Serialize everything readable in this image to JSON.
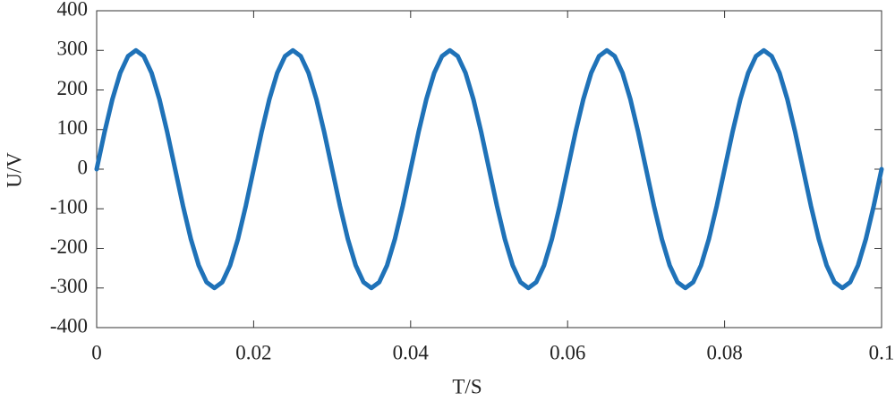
{
  "chart_data": {
    "type": "line",
    "xlabel": "T/S",
    "ylabel": "U/V",
    "x": [
      0,
      0.001,
      0.002,
      0.003,
      0.004,
      0.005,
      0.006,
      0.007,
      0.008,
      0.009,
      0.01,
      0.011,
      0.012,
      0.013,
      0.014,
      0.015,
      0.016,
      0.017,
      0.018,
      0.019,
      0.02,
      0.021,
      0.022,
      0.023,
      0.024,
      0.025,
      0.026,
      0.027,
      0.028,
      0.029,
      0.03,
      0.031,
      0.032,
      0.033,
      0.034,
      0.035,
      0.036,
      0.037,
      0.038,
      0.039,
      0.04,
      0.041,
      0.042,
      0.043,
      0.044,
      0.045,
      0.046,
      0.047,
      0.048,
      0.049,
      0.05,
      0.051,
      0.052,
      0.053,
      0.054,
      0.055,
      0.056,
      0.057,
      0.058,
      0.059,
      0.06,
      0.061,
      0.062,
      0.063,
      0.064,
      0.065,
      0.066,
      0.067,
      0.068,
      0.069,
      0.07,
      0.071,
      0.072,
      0.073,
      0.074,
      0.075,
      0.076,
      0.077,
      0.078,
      0.079,
      0.08,
      0.081,
      0.082,
      0.083,
      0.084,
      0.085,
      0.086,
      0.087,
      0.088,
      0.089,
      0.09,
      0.091,
      0.092,
      0.093,
      0.094,
      0.095,
      0.096,
      0.097,
      0.098,
      0.099,
      0.1
    ],
    "series": [
      {
        "color": "#1f72b8",
        "values": [
          0,
          92.7,
          176.3,
          242.7,
          285.3,
          300,
          285.3,
          242.7,
          176.3,
          92.7,
          0,
          -92.7,
          -176.3,
          -242.7,
          -285.3,
          -300,
          -285.3,
          -242.7,
          -176.3,
          -92.7,
          0,
          92.7,
          176.3,
          242.7,
          285.3,
          300,
          285.3,
          242.7,
          176.3,
          92.7,
          0,
          -92.7,
          -176.3,
          -242.7,
          -285.3,
          -300,
          -285.3,
          -242.7,
          -176.3,
          -92.7,
          0,
          92.7,
          176.3,
          242.7,
          285.3,
          300,
          285.3,
          242.7,
          176.3,
          92.7,
          0,
          -92.7,
          -176.3,
          -242.7,
          -285.3,
          -300,
          -285.3,
          -242.7,
          -176.3,
          -92.7,
          0,
          92.7,
          176.3,
          242.7,
          285.3,
          300,
          285.3,
          242.7,
          176.3,
          92.7,
          0,
          -92.7,
          -176.3,
          -242.7,
          -285.3,
          -300,
          -285.3,
          -242.7,
          -176.3,
          -92.7,
          0,
          92.7,
          176.3,
          242.7,
          285.3,
          300,
          285.3,
          242.7,
          176.3,
          92.7,
          0,
          -92.7,
          -176.3,
          -242.7,
          -285.3,
          -300,
          -285.3,
          -242.7,
          -176.3,
          -92.7,
          0
        ]
      }
    ],
    "xlim": [
      0,
      0.1
    ],
    "xticks": [
      0,
      0.02,
      0.04,
      0.06,
      0.08,
      0.1
    ],
    "ylim": [
      -400,
      400
    ],
    "yticks": [
      -400,
      -300,
      -200,
      -100,
      0,
      100,
      200,
      300,
      400
    ],
    "grid": false
  }
}
